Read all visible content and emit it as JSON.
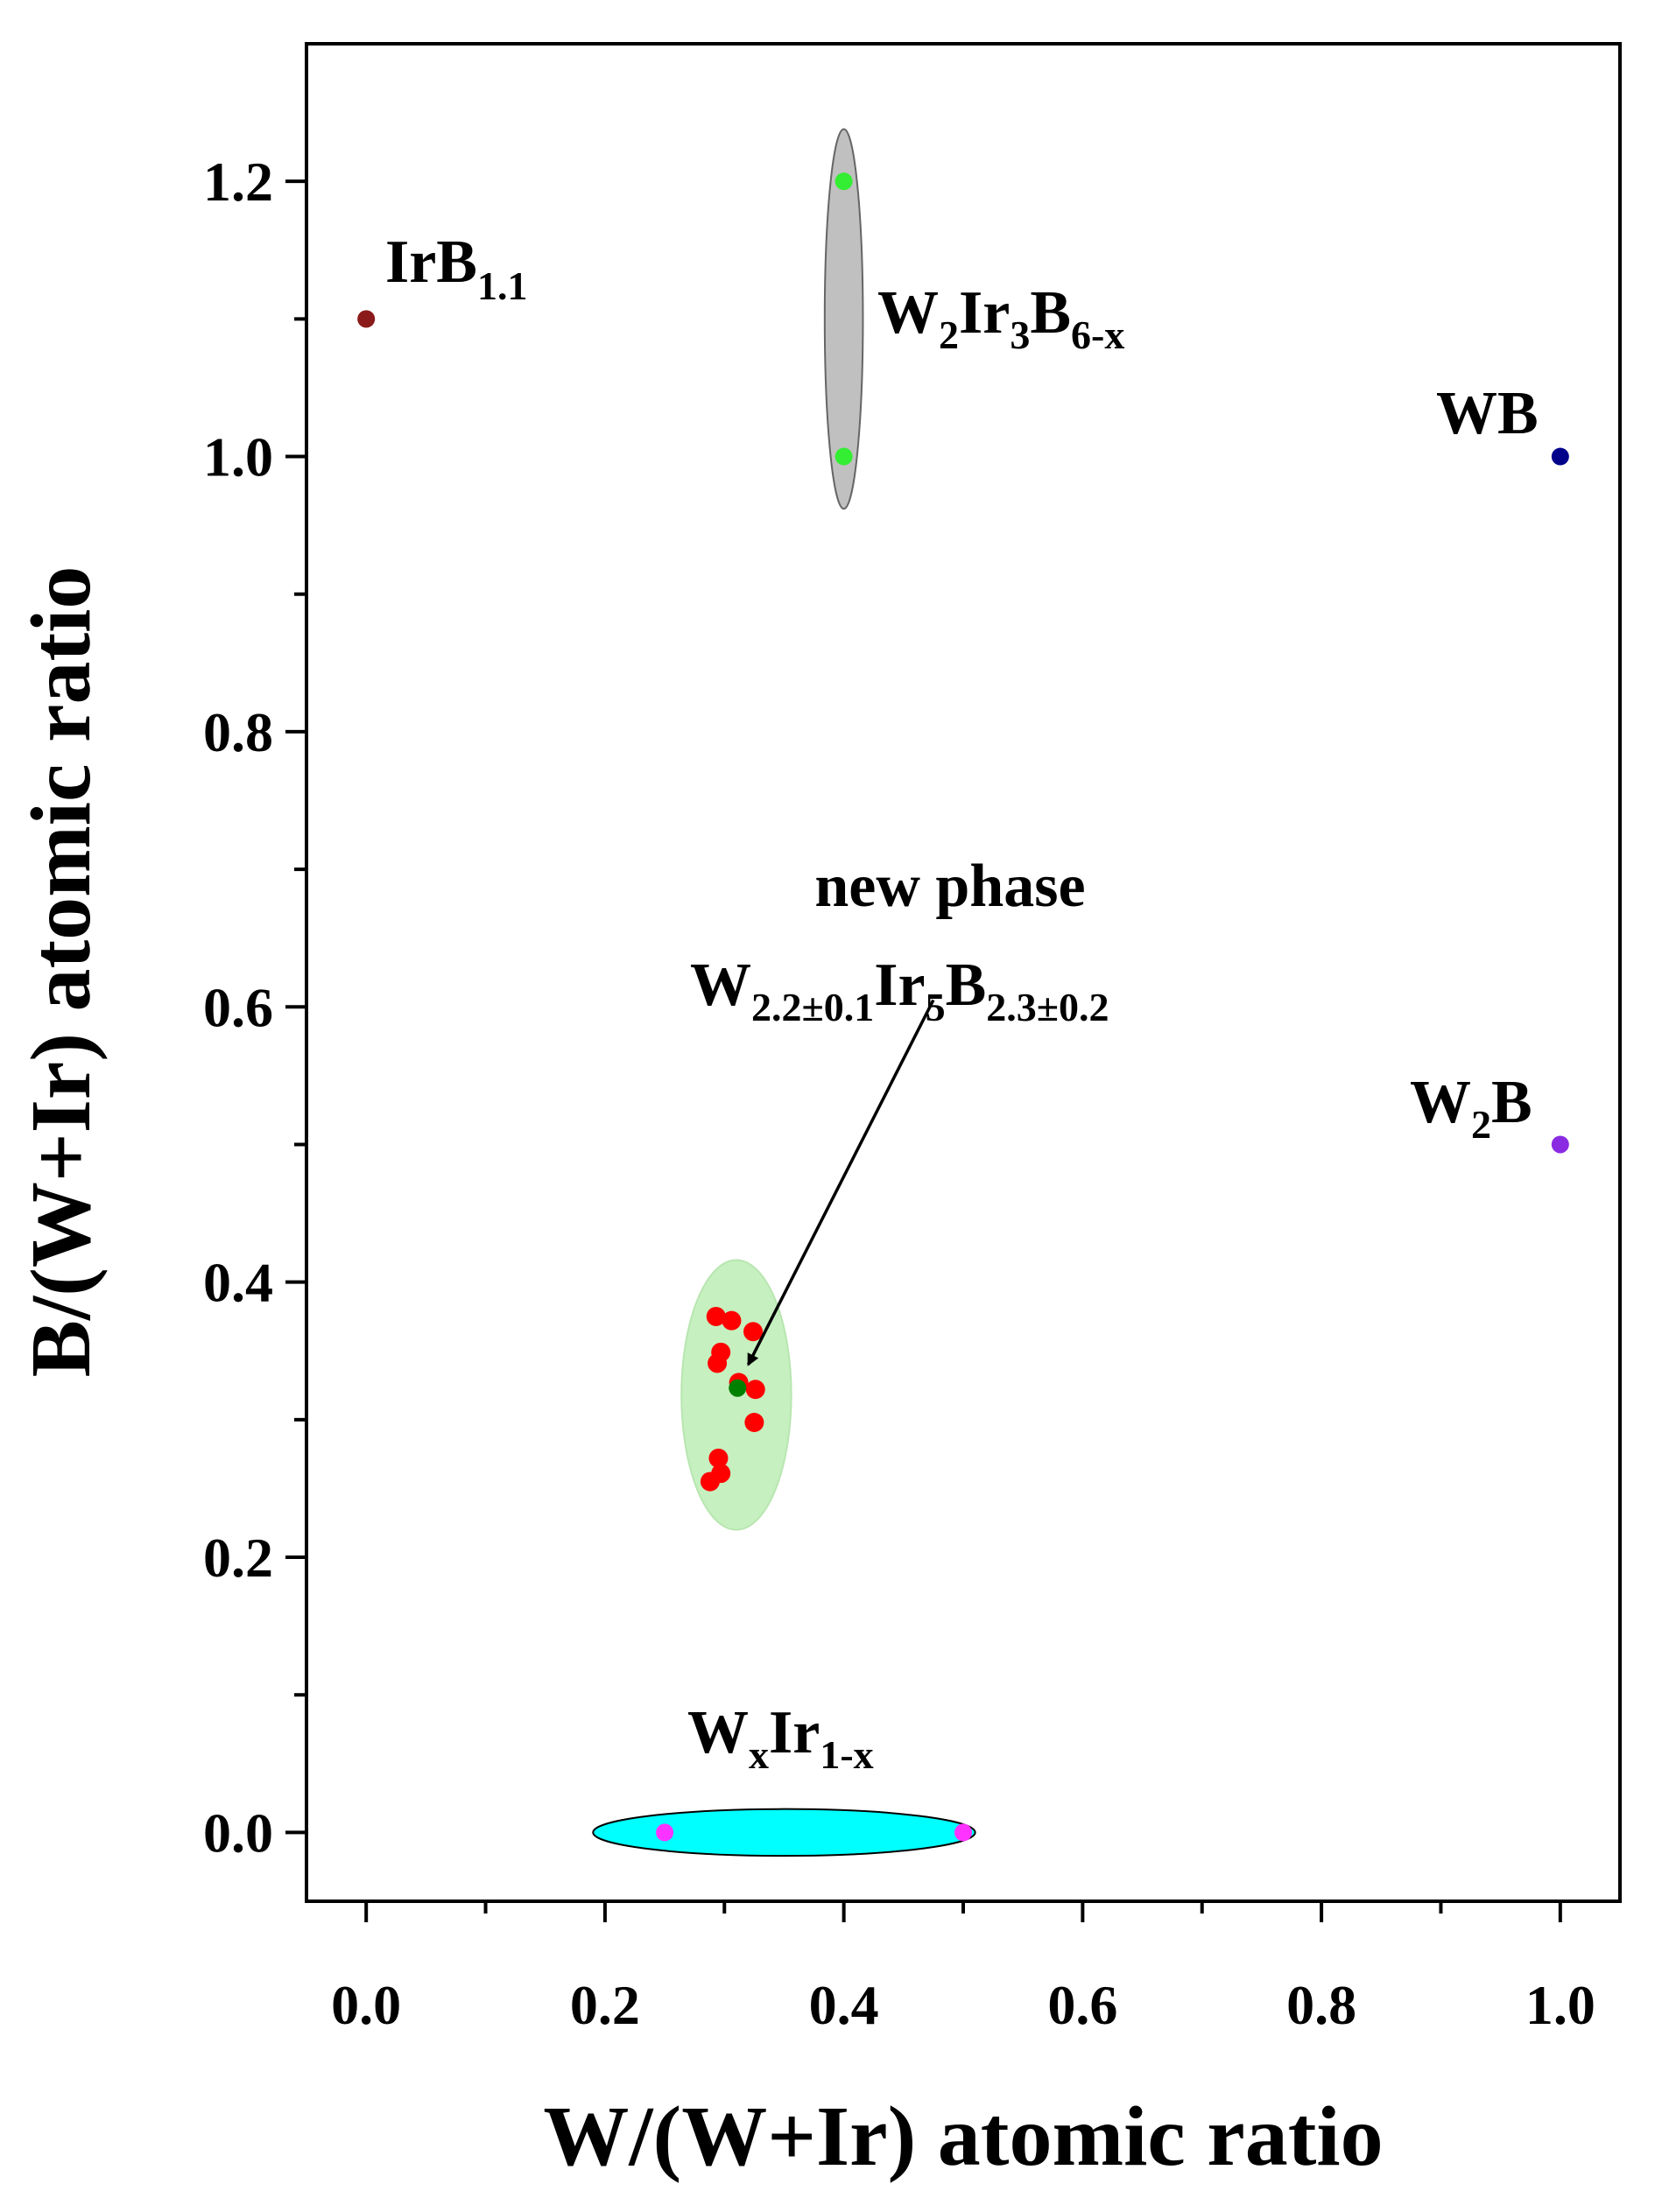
{
  "chart_data": {
    "type": "scatter",
    "xlabel": "W/(W+Ir) atomic ratio",
    "ylabel": "B/(W+Ir) atomic ratio",
    "xlim": [
      -0.05,
      1.05
    ],
    "ylim": [
      -0.05,
      1.3
    ],
    "xticks": [
      {
        "value": 0.0,
        "label": "0.0"
      },
      {
        "value": 0.2,
        "label": "0.2"
      },
      {
        "value": 0.4,
        "label": "0.4"
      },
      {
        "value": 0.6,
        "label": "0.6"
      },
      {
        "value": 0.8,
        "label": "0.8"
      },
      {
        "value": 1.0,
        "label": "1.0"
      }
    ],
    "yticks": [
      {
        "value": 0.0,
        "label": "0.0"
      },
      {
        "value": 0.2,
        "label": "0.2"
      },
      {
        "value": 0.4,
        "label": "0.4"
      },
      {
        "value": 0.6,
        "label": "0.6"
      },
      {
        "value": 0.8,
        "label": "0.8"
      },
      {
        "value": 1.0,
        "label": "1.0"
      },
      {
        "value": 1.2,
        "label": "1.2"
      }
    ],
    "minor_step": 0.1,
    "regions": [
      {
        "name": "W2Ir3B6-x region",
        "cx": 0.4,
        "cy": 1.1,
        "rx": 0.016,
        "ry": 0.138,
        "fill": "#c0c0c0",
        "stroke": "#666666"
      },
      {
        "name": "new phase region",
        "cx": 0.31,
        "cy": 0.318,
        "rx": 0.046,
        "ry": 0.098,
        "fill": "#c6f0c0",
        "stroke": "#b8e6b0"
      },
      {
        "name": "WxIr1-x region",
        "cx": 0.35,
        "cy": 0.0,
        "rx": 0.16,
        "ry": 0.017,
        "fill": "#00ffff",
        "stroke": "#000000"
      }
    ],
    "series": [
      {
        "name": "IrB1.1",
        "color": "#8b1a1a",
        "points": [
          {
            "x": 0.0,
            "y": 1.1
          }
        ]
      },
      {
        "name": "W2Ir3B6-x",
        "color": "#33ee33",
        "points": [
          {
            "x": 0.4,
            "y": 1.2
          },
          {
            "x": 0.4,
            "y": 1.0
          }
        ]
      },
      {
        "name": "WB",
        "color": "#00008b",
        "points": [
          {
            "x": 1.0,
            "y": 1.0
          }
        ]
      },
      {
        "name": "W2B",
        "color": "#8a2be2",
        "points": [
          {
            "x": 1.0,
            "y": 0.5
          }
        ]
      },
      {
        "name": "WxIr1-x",
        "color": "#ff33ff",
        "points": [
          {
            "x": 0.25,
            "y": 0.0
          },
          {
            "x": 0.5,
            "y": 0.0
          }
        ]
      },
      {
        "name": "measured compositions",
        "color": "#ff0000",
        "points": [
          {
            "x": 0.293,
            "y": 0.375
          },
          {
            "x": 0.306,
            "y": 0.372
          },
          {
            "x": 0.324,
            "y": 0.364
          },
          {
            "x": 0.297,
            "y": 0.349
          },
          {
            "x": 0.294,
            "y": 0.341
          },
          {
            "x": 0.312,
            "y": 0.327
          },
          {
            "x": 0.326,
            "y": 0.322
          },
          {
            "x": 0.325,
            "y": 0.298
          },
          {
            "x": 0.295,
            "y": 0.272
          },
          {
            "x": 0.297,
            "y": 0.261
          },
          {
            "x": 0.288,
            "y": 0.255
          }
        ]
      },
      {
        "name": "new phase average",
        "color": "#008000",
        "points": [
          {
            "x": 0.311,
            "y": 0.323
          }
        ]
      }
    ],
    "annotations": {
      "irb": {
        "main": "IrB",
        "sub": "1.1"
      },
      "w2ir3b": {
        "p1": "W",
        "s1": "2",
        "p2": "Ir",
        "s2": "3",
        "p3": "B",
        "s3": "6-x"
      },
      "wb": {
        "text": "WB"
      },
      "w2b": {
        "p1": "W",
        "s1": "2",
        "p2": "B"
      },
      "newphase_line1": "new phase",
      "newphase_line2": {
        "p1": "W",
        "s1": "2.2±0.1",
        "p2": "Ir",
        "s2": "5",
        "p3": "B",
        "s3": "2.3±0.2"
      },
      "wxir": {
        "p1": "W",
        "s1": "x",
        "p2": "Ir",
        "s2": "1-x"
      },
      "arrow": {
        "from": {
          "x": 0.475,
          "y": 0.605
        },
        "to": {
          "x": 0.32,
          "y": 0.34
        }
      }
    }
  }
}
